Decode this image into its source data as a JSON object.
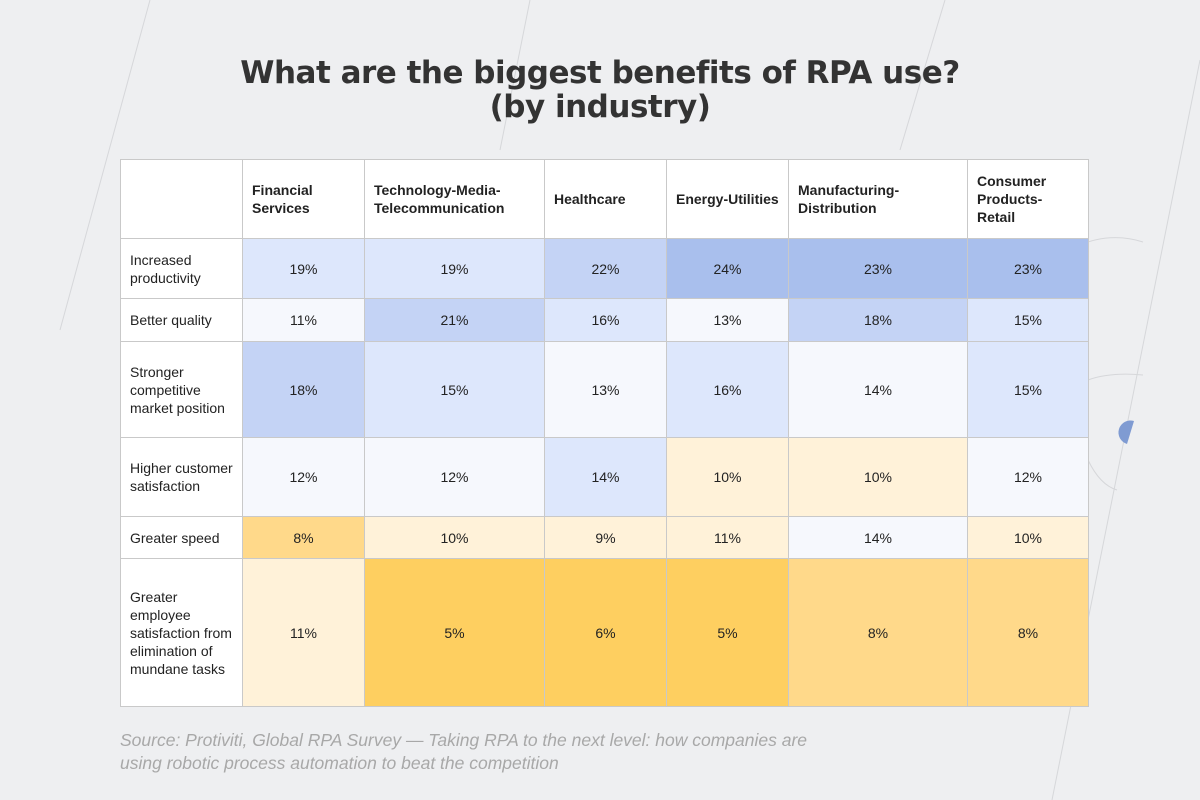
{
  "title_line1": "What are the biggest benefits of RPA use?",
  "title_line2": "(by industry)",
  "chart_data": {
    "type": "heatmap",
    "title": "What are the biggest benefits of RPA use? (by industry)",
    "columns": [
      "Financial Services",
      "Technology-Media-Telecommunication",
      "Healthcare",
      "Energy-Utilities",
      "Manufacturing-Distribution",
      "Consumer Products-Retail"
    ],
    "rows": [
      {
        "label": "Increased productivity",
        "values": [
          "19%",
          "19%",
          "22%",
          "24%",
          "23%",
          "23%"
        ],
        "colors": [
          "#dde7fc",
          "#dde7fc",
          "#c4d3f5",
          "#a9bfed",
          "#a9bfed",
          "#a9bfed"
        ]
      },
      {
        "label": "Better quality",
        "values": [
          "11%",
          "21%",
          "16%",
          "13%",
          "18%",
          "15%"
        ],
        "colors": [
          "#f6f8fd",
          "#c4d3f5",
          "#dde7fc",
          "#f6f8fd",
          "#c4d3f5",
          "#dde7fc"
        ]
      },
      {
        "label": "Stronger competitive market position",
        "values": [
          "18%",
          "15%",
          "13%",
          "16%",
          "14%",
          "15%"
        ],
        "colors": [
          "#c4d3f5",
          "#dde7fc",
          "#f6f8fd",
          "#dde7fc",
          "#f6f8fd",
          "#dde7fc"
        ]
      },
      {
        "label": "Higher customer satisfaction",
        "values": [
          "12%",
          "12%",
          "14%",
          "10%",
          "10%",
          "12%"
        ],
        "colors": [
          "#f6f8fd",
          "#f6f8fd",
          "#dde7fc",
          "#fff2d9",
          "#fff2d9",
          "#f6f8fd"
        ]
      },
      {
        "label": "Greater speed",
        "values": [
          "8%",
          "10%",
          "9%",
          "11%",
          "14%",
          "10%"
        ],
        "colors": [
          "#ffd98a",
          "#fff2d9",
          "#fff2d9",
          "#fff2d9",
          "#f6f8fd",
          "#fff2d9"
        ]
      },
      {
        "label": "Greater employee satisfaction from elimination of mundane tasks",
        "values": [
          "11%",
          "5%",
          "6%",
          "5%",
          "8%",
          "8%"
        ],
        "colors": [
          "#fff2d9",
          "#fecf60",
          "#fecf60",
          "#fecf60",
          "#ffd98a",
          "#ffd98a"
        ]
      }
    ]
  },
  "source": "Source: Protiviti, Global RPA Survey — Taking RPA to the next level: how companies are using robotic process automation to beat the competition"
}
